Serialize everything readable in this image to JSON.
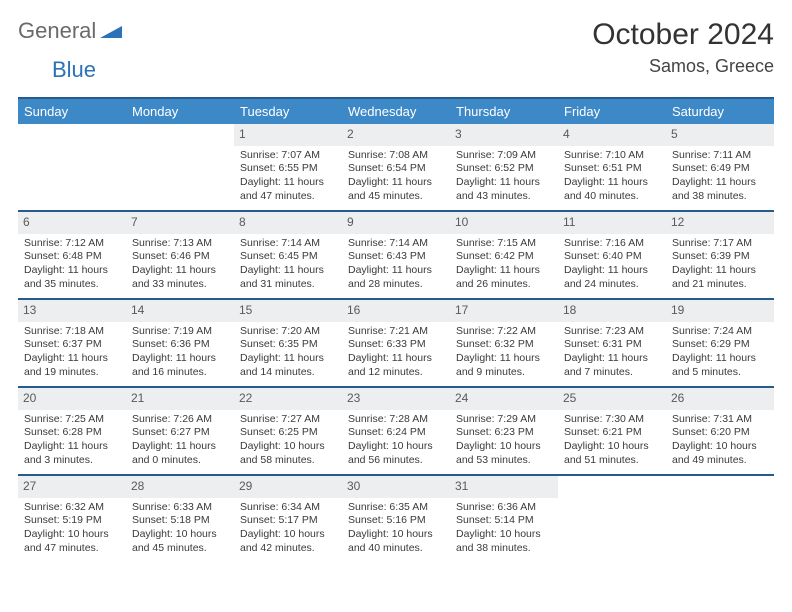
{
  "brand": {
    "part1": "General",
    "part2": "Blue"
  },
  "title": "October 2024",
  "location": "Samos, Greece",
  "colors": {
    "header_bg": "#3d88c7",
    "rule": "#275b8c",
    "daynum_bg": "#eceef0",
    "text": "#333333",
    "logo_gray": "#6a6a6a",
    "logo_blue": "#2b72b8"
  },
  "day_names": [
    "Sunday",
    "Monday",
    "Tuesday",
    "Wednesday",
    "Thursday",
    "Friday",
    "Saturday"
  ],
  "weeks": [
    [
      null,
      null,
      {
        "n": "1",
        "sr": "7:07 AM",
        "ss": "6:55 PM",
        "dl": "11 hours and 47 minutes."
      },
      {
        "n": "2",
        "sr": "7:08 AM",
        "ss": "6:54 PM",
        "dl": "11 hours and 45 minutes."
      },
      {
        "n": "3",
        "sr": "7:09 AM",
        "ss": "6:52 PM",
        "dl": "11 hours and 43 minutes."
      },
      {
        "n": "4",
        "sr": "7:10 AM",
        "ss": "6:51 PM",
        "dl": "11 hours and 40 minutes."
      },
      {
        "n": "5",
        "sr": "7:11 AM",
        "ss": "6:49 PM",
        "dl": "11 hours and 38 minutes."
      }
    ],
    [
      {
        "n": "6",
        "sr": "7:12 AM",
        "ss": "6:48 PM",
        "dl": "11 hours and 35 minutes."
      },
      {
        "n": "7",
        "sr": "7:13 AM",
        "ss": "6:46 PM",
        "dl": "11 hours and 33 minutes."
      },
      {
        "n": "8",
        "sr": "7:14 AM",
        "ss": "6:45 PM",
        "dl": "11 hours and 31 minutes."
      },
      {
        "n": "9",
        "sr": "7:14 AM",
        "ss": "6:43 PM",
        "dl": "11 hours and 28 minutes."
      },
      {
        "n": "10",
        "sr": "7:15 AM",
        "ss": "6:42 PM",
        "dl": "11 hours and 26 minutes."
      },
      {
        "n": "11",
        "sr": "7:16 AM",
        "ss": "6:40 PM",
        "dl": "11 hours and 24 minutes."
      },
      {
        "n": "12",
        "sr": "7:17 AM",
        "ss": "6:39 PM",
        "dl": "11 hours and 21 minutes."
      }
    ],
    [
      {
        "n": "13",
        "sr": "7:18 AM",
        "ss": "6:37 PM",
        "dl": "11 hours and 19 minutes."
      },
      {
        "n": "14",
        "sr": "7:19 AM",
        "ss": "6:36 PM",
        "dl": "11 hours and 16 minutes."
      },
      {
        "n": "15",
        "sr": "7:20 AM",
        "ss": "6:35 PM",
        "dl": "11 hours and 14 minutes."
      },
      {
        "n": "16",
        "sr": "7:21 AM",
        "ss": "6:33 PM",
        "dl": "11 hours and 12 minutes."
      },
      {
        "n": "17",
        "sr": "7:22 AM",
        "ss": "6:32 PM",
        "dl": "11 hours and 9 minutes."
      },
      {
        "n": "18",
        "sr": "7:23 AM",
        "ss": "6:31 PM",
        "dl": "11 hours and 7 minutes."
      },
      {
        "n": "19",
        "sr": "7:24 AM",
        "ss": "6:29 PM",
        "dl": "11 hours and 5 minutes."
      }
    ],
    [
      {
        "n": "20",
        "sr": "7:25 AM",
        "ss": "6:28 PM",
        "dl": "11 hours and 3 minutes."
      },
      {
        "n": "21",
        "sr": "7:26 AM",
        "ss": "6:27 PM",
        "dl": "11 hours and 0 minutes."
      },
      {
        "n": "22",
        "sr": "7:27 AM",
        "ss": "6:25 PM",
        "dl": "10 hours and 58 minutes."
      },
      {
        "n": "23",
        "sr": "7:28 AM",
        "ss": "6:24 PM",
        "dl": "10 hours and 56 minutes."
      },
      {
        "n": "24",
        "sr": "7:29 AM",
        "ss": "6:23 PM",
        "dl": "10 hours and 53 minutes."
      },
      {
        "n": "25",
        "sr": "7:30 AM",
        "ss": "6:21 PM",
        "dl": "10 hours and 51 minutes."
      },
      {
        "n": "26",
        "sr": "7:31 AM",
        "ss": "6:20 PM",
        "dl": "10 hours and 49 minutes."
      }
    ],
    [
      {
        "n": "27",
        "sr": "6:32 AM",
        "ss": "5:19 PM",
        "dl": "10 hours and 47 minutes."
      },
      {
        "n": "28",
        "sr": "6:33 AM",
        "ss": "5:18 PM",
        "dl": "10 hours and 45 minutes."
      },
      {
        "n": "29",
        "sr": "6:34 AM",
        "ss": "5:17 PM",
        "dl": "10 hours and 42 minutes."
      },
      {
        "n": "30",
        "sr": "6:35 AM",
        "ss": "5:16 PM",
        "dl": "10 hours and 40 minutes."
      },
      {
        "n": "31",
        "sr": "6:36 AM",
        "ss": "5:14 PM",
        "dl": "10 hours and 38 minutes."
      },
      null,
      null
    ]
  ],
  "labels": {
    "sunrise": "Sunrise: ",
    "sunset": "Sunset: ",
    "daylight": "Daylight: "
  }
}
